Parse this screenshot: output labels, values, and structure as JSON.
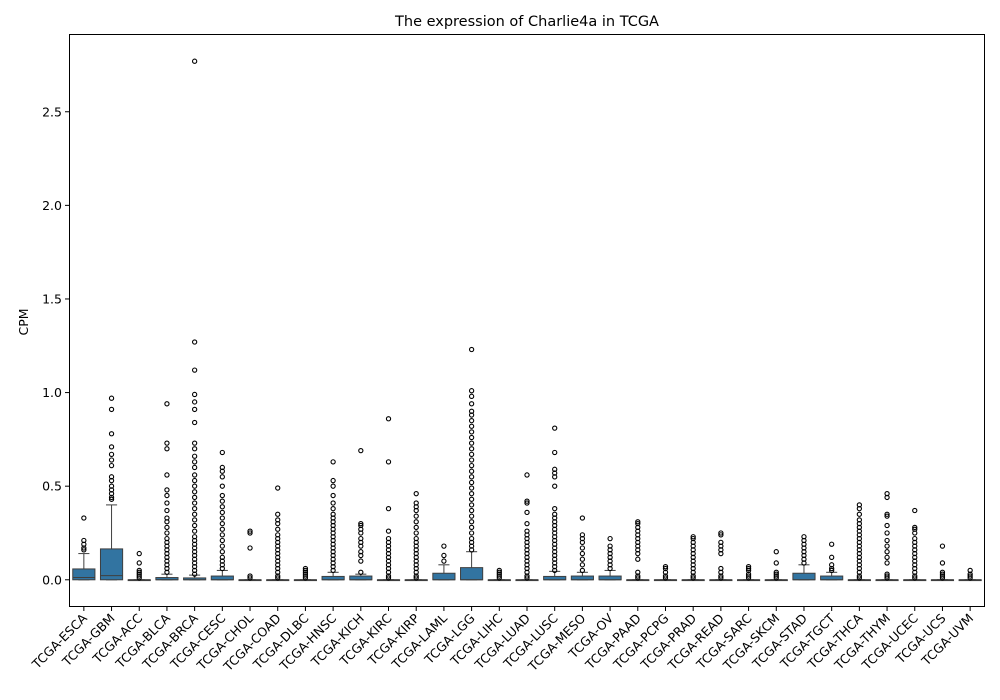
{
  "chart_data": {
    "type": "box",
    "title": "The expression of Charlie4a in TCGA",
    "xlabel": "",
    "ylabel": "CPM",
    "ylim": [
      -0.14,
      2.91
    ],
    "yticks": [
      0.0,
      0.5,
      1.0,
      1.5,
      2.0,
      2.5
    ],
    "ytick_labels": [
      "0.0",
      "0.5",
      "1.0",
      "1.5",
      "2.0",
      "2.5"
    ],
    "grid": false,
    "box_color": "#3274a1",
    "categories": [
      "TCGA-ESCA",
      "TCGA-GBM",
      "TCGA-ACC",
      "TCGA-BLCA",
      "TCGA-BRCA",
      "TCGA-CESC",
      "TCGA-CHOL",
      "TCGA-COAD",
      "TCGA-DLBC",
      "TCGA-HNSC",
      "TCGA-KICH",
      "TCGA-KIRC",
      "TCGA-KIRP",
      "TCGA-LAML",
      "TCGA-LGG",
      "TCGA-LIHC",
      "TCGA-LUAD",
      "TCGA-LUSC",
      "TCGA-MESO",
      "TCGA-OV",
      "TCGA-PAAD",
      "TCGA-PCPG",
      "TCGA-PRAD",
      "TCGA-READ",
      "TCGA-SARC",
      "TCGA-SKCM",
      "TCGA-STAD",
      "TCGA-TGCT",
      "TCGA-THCA",
      "TCGA-THYM",
      "TCGA-UCEC",
      "TCGA-UCS",
      "TCGA-UVM"
    ],
    "boxes": [
      {
        "q1": 0.0,
        "median": 0.012,
        "q3": 0.058,
        "whislo": 0.0,
        "whishi": 0.14,
        "fliers": [
          0.16,
          0.17,
          0.19,
          0.21,
          0.33
        ]
      },
      {
        "q1": 0.0,
        "median": 0.022,
        "q3": 0.165,
        "whislo": 0.0,
        "whishi": 0.4,
        "fliers": [
          0.43,
          0.44,
          0.46,
          0.48,
          0.5,
          0.53,
          0.55,
          0.61,
          0.64,
          0.67,
          0.71,
          0.78,
          0.91,
          0.97
        ]
      },
      {
        "q1": 0.0,
        "median": 0.0,
        "q3": 0.0,
        "whislo": 0.0,
        "whishi": 0.0,
        "fliers": [
          0.01,
          0.02,
          0.03,
          0.04,
          0.05,
          0.09,
          0.14
        ]
      },
      {
        "q1": 0.0,
        "median": 0.0,
        "q3": 0.012,
        "whislo": 0.0,
        "whishi": 0.03,
        "fliers": [
          0.04,
          0.06,
          0.08,
          0.1,
          0.12,
          0.14,
          0.16,
          0.18,
          0.2,
          0.22,
          0.25,
          0.28,
          0.31,
          0.33,
          0.37,
          0.41,
          0.45,
          0.48,
          0.56,
          0.7,
          0.73,
          0.94
        ]
      },
      {
        "q1": 0.0,
        "median": 0.0,
        "q3": 0.01,
        "whislo": 0.0,
        "whishi": 0.025,
        "fliers": [
          0.03,
          0.05,
          0.07,
          0.09,
          0.11,
          0.13,
          0.15,
          0.17,
          0.19,
          0.21,
          0.23,
          0.26,
          0.29,
          0.32,
          0.35,
          0.38,
          0.41,
          0.44,
          0.47,
          0.5,
          0.53,
          0.56,
          0.6,
          0.63,
          0.66,
          0.7,
          0.73,
          0.84,
          0.91,
          0.95,
          0.99,
          1.12,
          1.27,
          2.77
        ]
      },
      {
        "q1": 0.0,
        "median": 0.0,
        "q3": 0.02,
        "whislo": 0.0,
        "whishi": 0.05,
        "fliers": [
          0.06,
          0.08,
          0.1,
          0.12,
          0.15,
          0.18,
          0.21,
          0.24,
          0.27,
          0.3,
          0.33,
          0.36,
          0.39,
          0.42,
          0.45,
          0.5,
          0.55,
          0.58,
          0.6,
          0.68
        ]
      },
      {
        "q1": 0.0,
        "median": 0.0,
        "q3": 0.0,
        "whislo": 0.0,
        "whishi": 0.0,
        "fliers": [
          0.01,
          0.02,
          0.17,
          0.25,
          0.26
        ]
      },
      {
        "q1": 0.0,
        "median": 0.0,
        "q3": 0.0,
        "whislo": 0.0,
        "whishi": 0.0,
        "fliers": [
          0.01,
          0.02,
          0.04,
          0.06,
          0.08,
          0.1,
          0.12,
          0.14,
          0.16,
          0.18,
          0.2,
          0.22,
          0.24,
          0.27,
          0.3,
          0.32,
          0.35,
          0.49
        ]
      },
      {
        "q1": 0.0,
        "median": 0.0,
        "q3": 0.0,
        "whislo": 0.0,
        "whishi": 0.0,
        "fliers": [
          0.01,
          0.02,
          0.03,
          0.04,
          0.05,
          0.06
        ]
      },
      {
        "q1": 0.0,
        "median": 0.0,
        "q3": 0.018,
        "whislo": 0.0,
        "whishi": 0.04,
        "fliers": [
          0.05,
          0.07,
          0.09,
          0.11,
          0.13,
          0.15,
          0.17,
          0.19,
          0.21,
          0.23,
          0.25,
          0.27,
          0.29,
          0.31,
          0.33,
          0.35,
          0.38,
          0.41,
          0.45,
          0.5,
          0.53,
          0.63
        ]
      },
      {
        "q1": 0.0,
        "median": 0.0,
        "q3": 0.02,
        "whislo": 0.0,
        "whishi": 0.03,
        "fliers": [
          0.04,
          0.1,
          0.13,
          0.15,
          0.18,
          0.2,
          0.22,
          0.25,
          0.27,
          0.29,
          0.3,
          0.69
        ]
      },
      {
        "q1": 0.0,
        "median": 0.0,
        "q3": 0.0,
        "whislo": 0.0,
        "whishi": 0.0,
        "fliers": [
          0.01,
          0.02,
          0.04,
          0.06,
          0.08,
          0.1,
          0.12,
          0.14,
          0.16,
          0.18,
          0.2,
          0.22,
          0.26,
          0.38,
          0.63,
          0.86
        ]
      },
      {
        "q1": 0.0,
        "median": 0.0,
        "q3": 0.0,
        "whislo": 0.0,
        "whishi": 0.0,
        "fliers": [
          0.01,
          0.02,
          0.04,
          0.06,
          0.08,
          0.1,
          0.12,
          0.14,
          0.16,
          0.18,
          0.2,
          0.22,
          0.25,
          0.28,
          0.31,
          0.34,
          0.37,
          0.39,
          0.41,
          0.46
        ]
      },
      {
        "q1": 0.0,
        "median": 0.0,
        "q3": 0.035,
        "whislo": 0.0,
        "whishi": 0.08,
        "fliers": [
          0.1,
          0.13,
          0.18
        ]
      },
      {
        "q1": 0.0,
        "median": 0.0,
        "q3": 0.065,
        "whislo": 0.0,
        "whishi": 0.15,
        "fliers": [
          0.16,
          0.18,
          0.2,
          0.22,
          0.25,
          0.28,
          0.31,
          0.34,
          0.37,
          0.4,
          0.43,
          0.46,
          0.49,
          0.52,
          0.55,
          0.58,
          0.61,
          0.64,
          0.67,
          0.7,
          0.73,
          0.76,
          0.79,
          0.82,
          0.85,
          0.88,
          0.9,
          0.94,
          0.98,
          1.01,
          1.23
        ]
      },
      {
        "q1": 0.0,
        "median": 0.0,
        "q3": 0.0,
        "whislo": 0.0,
        "whishi": 0.0,
        "fliers": [
          0.01,
          0.02,
          0.03,
          0.04,
          0.05
        ]
      },
      {
        "q1": 0.0,
        "median": 0.0,
        "q3": 0.0,
        "whislo": 0.0,
        "whishi": 0.0,
        "fliers": [
          0.01,
          0.02,
          0.04,
          0.06,
          0.08,
          0.1,
          0.12,
          0.14,
          0.16,
          0.18,
          0.2,
          0.22,
          0.24,
          0.26,
          0.3,
          0.36,
          0.41,
          0.42,
          0.56
        ]
      },
      {
        "q1": 0.0,
        "median": 0.0,
        "q3": 0.018,
        "whislo": 0.0,
        "whishi": 0.045,
        "fliers": [
          0.05,
          0.07,
          0.09,
          0.11,
          0.13,
          0.15,
          0.17,
          0.19,
          0.21,
          0.23,
          0.25,
          0.27,
          0.29,
          0.31,
          0.33,
          0.35,
          0.38,
          0.5,
          0.55,
          0.57,
          0.59,
          0.68,
          0.81
        ]
      },
      {
        "q1": 0.0,
        "median": 0.0,
        "q3": 0.02,
        "whislo": 0.0,
        "whishi": 0.04,
        "fliers": [
          0.05,
          0.08,
          0.11,
          0.14,
          0.17,
          0.2,
          0.22,
          0.24,
          0.33
        ]
      },
      {
        "q1": 0.0,
        "median": 0.0,
        "q3": 0.02,
        "whislo": 0.0,
        "whishi": 0.05,
        "fliers": [
          0.06,
          0.08,
          0.1,
          0.12,
          0.14,
          0.16,
          0.18,
          0.22
        ]
      },
      {
        "q1": 0.0,
        "median": 0.0,
        "q3": 0.0,
        "whislo": 0.0,
        "whishi": 0.0,
        "fliers": [
          0.01,
          0.02,
          0.04,
          0.11,
          0.14,
          0.16,
          0.18,
          0.2,
          0.22,
          0.24,
          0.26,
          0.28,
          0.3,
          0.31
        ]
      },
      {
        "q1": 0.0,
        "median": 0.0,
        "q3": 0.0,
        "whislo": 0.0,
        "whishi": 0.0,
        "fliers": [
          0.01,
          0.02,
          0.04,
          0.06,
          0.07
        ]
      },
      {
        "q1": 0.0,
        "median": 0.0,
        "q3": 0.0,
        "whislo": 0.0,
        "whishi": 0.0,
        "fliers": [
          0.01,
          0.02,
          0.04,
          0.06,
          0.08,
          0.1,
          0.12,
          0.14,
          0.16,
          0.18,
          0.2,
          0.22,
          0.23
        ]
      },
      {
        "q1": 0.0,
        "median": 0.0,
        "q3": 0.0,
        "whislo": 0.0,
        "whishi": 0.0,
        "fliers": [
          0.01,
          0.02,
          0.04,
          0.06,
          0.14,
          0.16,
          0.18,
          0.2,
          0.24,
          0.25
        ]
      },
      {
        "q1": 0.0,
        "median": 0.0,
        "q3": 0.0,
        "whislo": 0.0,
        "whishi": 0.0,
        "fliers": [
          0.01,
          0.02,
          0.03,
          0.05,
          0.06,
          0.07
        ]
      },
      {
        "q1": 0.0,
        "median": 0.0,
        "q3": 0.0,
        "whislo": 0.0,
        "whishi": 0.0,
        "fliers": [
          0.01,
          0.02,
          0.03,
          0.04,
          0.09,
          0.15
        ]
      },
      {
        "q1": 0.0,
        "median": 0.0,
        "q3": 0.035,
        "whislo": 0.0,
        "whishi": 0.08,
        "fliers": [
          0.09,
          0.11,
          0.13,
          0.15,
          0.17,
          0.19,
          0.21,
          0.23
        ]
      },
      {
        "q1": 0.0,
        "median": 0.0,
        "q3": 0.02,
        "whislo": 0.0,
        "whishi": 0.04,
        "fliers": [
          0.05,
          0.06,
          0.08,
          0.12,
          0.19
        ]
      },
      {
        "q1": 0.0,
        "median": 0.0,
        "q3": 0.0,
        "whislo": 0.0,
        "whishi": 0.0,
        "fliers": [
          0.01,
          0.02,
          0.04,
          0.06,
          0.08,
          0.1,
          0.12,
          0.14,
          0.16,
          0.18,
          0.2,
          0.22,
          0.24,
          0.26,
          0.28,
          0.3,
          0.32,
          0.35,
          0.38,
          0.4
        ]
      },
      {
        "q1": 0.0,
        "median": 0.0,
        "q3": 0.0,
        "whislo": 0.0,
        "whishi": 0.0,
        "fliers": [
          0.01,
          0.02,
          0.03,
          0.09,
          0.12,
          0.15,
          0.18,
          0.21,
          0.25,
          0.29,
          0.34,
          0.35,
          0.44,
          0.46
        ]
      },
      {
        "q1": 0.0,
        "median": 0.0,
        "q3": 0.0,
        "whislo": 0.0,
        "whishi": 0.0,
        "fliers": [
          0.01,
          0.02,
          0.04,
          0.06,
          0.08,
          0.1,
          0.12,
          0.14,
          0.16,
          0.18,
          0.2,
          0.22,
          0.25,
          0.27,
          0.28,
          0.37
        ]
      },
      {
        "q1": 0.0,
        "median": 0.0,
        "q3": 0.0,
        "whislo": 0.0,
        "whishi": 0.0,
        "fliers": [
          0.01,
          0.02,
          0.03,
          0.04,
          0.09,
          0.18
        ]
      },
      {
        "q1": 0.0,
        "median": 0.0,
        "q3": 0.0,
        "whislo": 0.0,
        "whishi": 0.0,
        "fliers": [
          0.01,
          0.02,
          0.03,
          0.05
        ]
      }
    ]
  }
}
